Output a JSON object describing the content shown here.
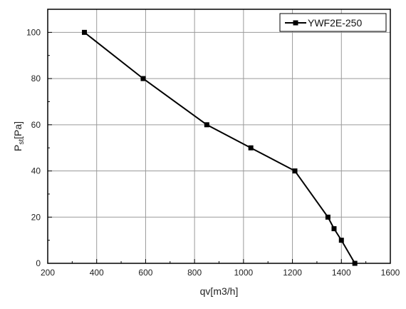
{
  "chart_data": {
    "type": "line",
    "xlabel": "qv[m3/h]",
    "ylabel": {
      "main": "P",
      "sub": "st",
      "unit": "[Pa]"
    },
    "xlim": [
      200,
      1600
    ],
    "ylim": [
      0,
      110
    ],
    "xticks": [
      200,
      400,
      600,
      800,
      1000,
      1200,
      1400,
      1600
    ],
    "yticks": [
      0,
      20,
      40,
      60,
      80,
      100
    ],
    "grid": true,
    "legend_position": "top-right",
    "series": [
      {
        "name": "YWF2E-250",
        "color": "#000000",
        "marker": "square",
        "x": [
          350,
          590,
          850,
          1030,
          1210,
          1345,
          1370,
          1400,
          1455
        ],
        "y": [
          100,
          80,
          60,
          50,
          40,
          20,
          15,
          10,
          0
        ]
      }
    ]
  }
}
